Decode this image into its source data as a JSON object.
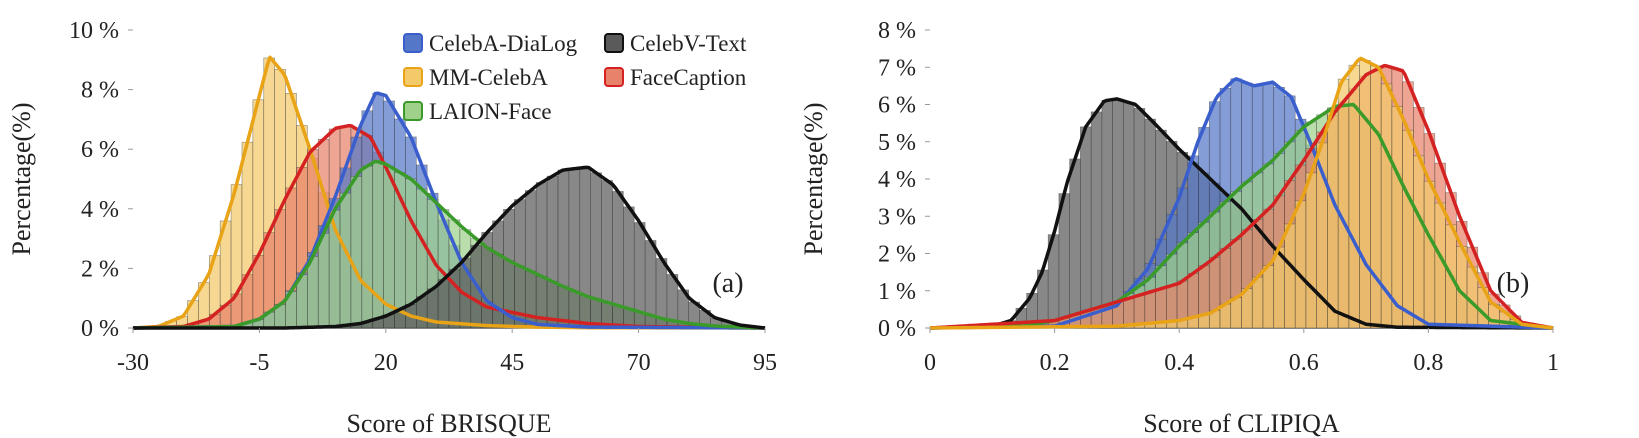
{
  "colors": {
    "CelebA-DiaLog": "#3a5fcd",
    "CelebV-Text": "#111111",
    "MM-CelebA": "#e8a317",
    "FaceCaption": "#d42222",
    "LAION-Face": "#3a9a2a"
  },
  "fills": {
    "CelebA-DiaLog": "#5577c8",
    "CelebV-Text": "#5a5a5a",
    "MM-CelebA": "#f3c96a",
    "FaceCaption": "#e8826a",
    "LAION-Face": "#9fd18b"
  },
  "chart_data": [
    {
      "type": "area",
      "panel_tag": "(a)",
      "xlabel": "Score of BRISQUE",
      "ylabel": "Percentage(%)",
      "xlim": [
        -30,
        95
      ],
      "ylim": [
        0,
        10
      ],
      "xticks": [
        -30,
        -5,
        20,
        45,
        70,
        95
      ],
      "xtick_labels": [
        "-30",
        "-5",
        "20",
        "45",
        "70",
        "95"
      ],
      "yticks": [
        0,
        2,
        4,
        6,
        8,
        10
      ],
      "ytick_labels": [
        "0 %",
        "2 %",
        "4 %",
        "6 %",
        "8 %",
        "10 %"
      ],
      "legend": [
        "CelebA-DiaLog",
        "CelebV-Text",
        "MM-CelebA",
        "FaceCaption",
        "LAION-Face"
      ],
      "legend_position": "top-right",
      "series": [
        {
          "name": "MM-CelebA",
          "x": [
            -30,
            -25,
            -20,
            -15,
            -10,
            -5,
            -3,
            0,
            5,
            10,
            15,
            20,
            25,
            30,
            40,
            50,
            60,
            95
          ],
          "y": [
            0,
            0.05,
            0.4,
            1.8,
            4.5,
            7.8,
            9.1,
            8.5,
            6.0,
            3.3,
            1.6,
            0.8,
            0.4,
            0.2,
            0.08,
            0.03,
            0.01,
            0
          ]
        },
        {
          "name": "FaceCaption",
          "x": [
            -30,
            -20,
            -15,
            -10,
            -5,
            0,
            5,
            10,
            13,
            17,
            20,
            25,
            30,
            35,
            40,
            50,
            60,
            70,
            95
          ],
          "y": [
            0,
            0.05,
            0.3,
            1.0,
            2.5,
            4.3,
            5.9,
            6.7,
            6.8,
            6.4,
            5.4,
            3.6,
            2.1,
            1.2,
            0.7,
            0.35,
            0.15,
            0.05,
            0
          ]
        },
        {
          "name": "CelebA-DiaLog",
          "x": [
            -30,
            -10,
            -5,
            0,
            5,
            10,
            15,
            18,
            20,
            25,
            30,
            35,
            40,
            45,
            50,
            60,
            95
          ],
          "y": [
            0,
            0.05,
            0.3,
            0.9,
            2.3,
            4.4,
            6.8,
            7.9,
            7.8,
            6.4,
            4.2,
            2.2,
            0.9,
            0.35,
            0.12,
            0.03,
            0
          ]
        },
        {
          "name": "LAION-Face",
          "x": [
            -30,
            -10,
            -5,
            0,
            5,
            10,
            15,
            18,
            20,
            25,
            30,
            35,
            40,
            45,
            50,
            55,
            60,
            65,
            70,
            75,
            80,
            85,
            90,
            95
          ],
          "y": [
            0,
            0.05,
            0.3,
            0.9,
            2.2,
            4.0,
            5.3,
            5.6,
            5.5,
            5.0,
            4.2,
            3.4,
            2.7,
            2.2,
            1.8,
            1.4,
            1.05,
            0.8,
            0.55,
            0.3,
            0.15,
            0.07,
            0.03,
            0
          ]
        },
        {
          "name": "CelebV-Text",
          "x": [
            -30,
            0,
            10,
            15,
            20,
            25,
            30,
            35,
            40,
            45,
            50,
            55,
            60,
            65,
            70,
            75,
            80,
            85,
            90,
            95
          ],
          "y": [
            0,
            0,
            0.05,
            0.15,
            0.4,
            0.8,
            1.4,
            2.2,
            3.2,
            4.1,
            4.8,
            5.3,
            5.4,
            4.8,
            3.6,
            2.2,
            1.0,
            0.35,
            0.1,
            0
          ]
        }
      ]
    },
    {
      "type": "area",
      "panel_tag": "(b)",
      "xlabel": "Score of CLIPIQA",
      "ylabel": "Percentage(%)",
      "xlim": [
        0,
        1
      ],
      "ylim": [
        0,
        8
      ],
      "xticks": [
        0,
        0.2,
        0.4,
        0.6,
        0.8,
        1
      ],
      "xtick_labels": [
        "0",
        "0.2",
        "0.4",
        "0.6",
        "0.8",
        "1"
      ],
      "yticks": [
        0,
        1,
        2,
        3,
        4,
        5,
        6,
        7,
        8
      ],
      "ytick_labels": [
        "0 %",
        "1 %",
        "2 %",
        "3 %",
        "4 %",
        "5 %",
        "6 %",
        "7 %",
        "8 %"
      ],
      "series": [
        {
          "name": "CelebV-Text",
          "x": [
            0,
            0.1,
            0.13,
            0.16,
            0.18,
            0.2,
            0.22,
            0.25,
            0.28,
            0.3,
            0.33,
            0.36,
            0.4,
            0.45,
            0.5,
            0.55,
            0.6,
            0.65,
            0.7,
            0.75,
            1
          ],
          "y": [
            0,
            0.05,
            0.2,
            0.8,
            1.5,
            2.6,
            3.9,
            5.4,
            6.1,
            6.15,
            6.0,
            5.5,
            4.8,
            4.0,
            3.2,
            2.2,
            1.3,
            0.45,
            0.1,
            0.02,
            0
          ]
        },
        {
          "name": "CelebA-DiaLog",
          "x": [
            0,
            0.2,
            0.3,
            0.35,
            0.4,
            0.43,
            0.46,
            0.49,
            0.52,
            0.55,
            0.58,
            0.61,
            0.65,
            0.7,
            0.75,
            0.8,
            1
          ],
          "y": [
            0,
            0.05,
            0.6,
            1.6,
            3.5,
            5.0,
            6.2,
            6.7,
            6.5,
            6.6,
            6.2,
            5.0,
            3.3,
            1.7,
            0.6,
            0.1,
            0
          ]
        },
        {
          "name": "LAION-Face",
          "x": [
            0,
            0.15,
            0.2,
            0.3,
            0.35,
            0.4,
            0.45,
            0.5,
            0.55,
            0.6,
            0.65,
            0.68,
            0.72,
            0.76,
            0.8,
            0.85,
            0.9,
            1
          ],
          "y": [
            0,
            0.05,
            0.2,
            0.7,
            1.3,
            2.2,
            3.0,
            3.8,
            4.5,
            5.4,
            5.95,
            6.0,
            5.2,
            3.8,
            2.5,
            1.0,
            0.2,
            0
          ]
        },
        {
          "name": "FaceCaption",
          "x": [
            0,
            0.2,
            0.3,
            0.4,
            0.45,
            0.5,
            0.55,
            0.6,
            0.65,
            0.7,
            0.73,
            0.76,
            0.8,
            0.85,
            0.9,
            0.95,
            1
          ],
          "y": [
            0,
            0.2,
            0.7,
            1.2,
            1.8,
            2.5,
            3.3,
            4.5,
            5.8,
            6.8,
            7.05,
            6.9,
            5.3,
            3.0,
            1.0,
            0.15,
            0
          ]
        },
        {
          "name": "MM-CelebA",
          "x": [
            0,
            0.3,
            0.4,
            0.45,
            0.5,
            0.55,
            0.6,
            0.63,
            0.66,
            0.69,
            0.72,
            0.76,
            0.8,
            0.85,
            0.9,
            0.95,
            1
          ],
          "y": [
            0,
            0.05,
            0.2,
            0.4,
            0.9,
            1.8,
            3.6,
            5.0,
            6.6,
            7.25,
            7.0,
            5.6,
            4.0,
            2.3,
            0.7,
            0.1,
            0
          ]
        }
      ]
    }
  ]
}
